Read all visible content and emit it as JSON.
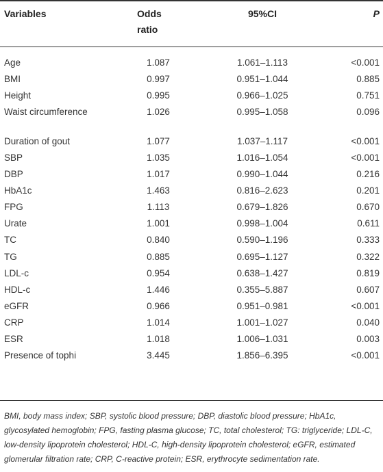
{
  "table": {
    "headers": {
      "variables": "Variables",
      "odds_ratio_line1": "Odds",
      "odds_ratio_line2": "ratio",
      "ci": "95%CI",
      "p": "P"
    },
    "rows": [
      {
        "variable": "Age",
        "or": "1.087",
        "ci": "1.061–1.113",
        "p": "<0.001"
      },
      {
        "variable": "BMI",
        "or": "0.997",
        "ci": "0.951–1.044",
        "p": "0.885"
      },
      {
        "variable": "Height",
        "or": "0.995",
        "ci": "0.966–1.025",
        "p": "0.751"
      },
      {
        "variable": "Waist circumference",
        "or": "1.026",
        "ci": "0.995–1.058",
        "p": "0.096"
      },
      {
        "variable": "Duration of gout",
        "or": "1.077",
        "ci": "1.037–1.117",
        "p": "<0.001"
      },
      {
        "variable": "SBP",
        "or": "1.035",
        "ci": "1.016–1.054",
        "p": "<0.001"
      },
      {
        "variable": "DBP",
        "or": "1.017",
        "ci": "0.990–1.044",
        "p": "0.216"
      },
      {
        "variable": "HbA1c",
        "or": "1.463",
        "ci": "0.816–2.623",
        "p": "0.201"
      },
      {
        "variable": "FPG",
        "or": "1.113",
        "ci": "0.679–1.826",
        "p": "0.670"
      },
      {
        "variable": "Urate",
        "or": "1.001",
        "ci": "0.998–1.004",
        "p": "0.611"
      },
      {
        "variable": "TC",
        "or": "0.840",
        "ci": "0.590–1.196",
        "p": "0.333"
      },
      {
        "variable": "TG",
        "or": "0.885",
        "ci": "0.695–1.127",
        "p": "0.322"
      },
      {
        "variable": "LDL-c",
        "or": "0.954",
        "ci": "0.638–1.427",
        "p": "0.819"
      },
      {
        "variable": "HDL-c",
        "or": "1.446",
        "ci": "0.355–5.887",
        "p": "0.607"
      },
      {
        "variable": "eGFR",
        "or": "0.966",
        "ci": "0.951–0.981",
        "p": "<0.001"
      },
      {
        "variable": "CRP",
        "or": "1.014",
        "ci": "1.001–1.027",
        "p": "0.040"
      },
      {
        "variable": "ESR",
        "or": "1.018",
        "ci": "1.006–1.031",
        "p": "0.003"
      },
      {
        "variable": "Presence of tophi",
        "or": "3.445",
        "ci": "1.856–6.395",
        "p": "<0.001"
      }
    ],
    "footnote": "BMI, body mass index; SBP, systolic blood pressure; DBP, diastolic blood pressure; HbA1c, glycosylated hemoglobin; FPG, fasting plasma glucose; TC, total cholesterol; TG: triglyceride; LDL-C, low-density lipoprotein cholesterol; HDL-C, high-density lipoprotein cholesterol; eGFR, estimated glomerular filtration rate; CRP, C-reactive protein; ESR, erythrocyte sedimentation rate."
  }
}
